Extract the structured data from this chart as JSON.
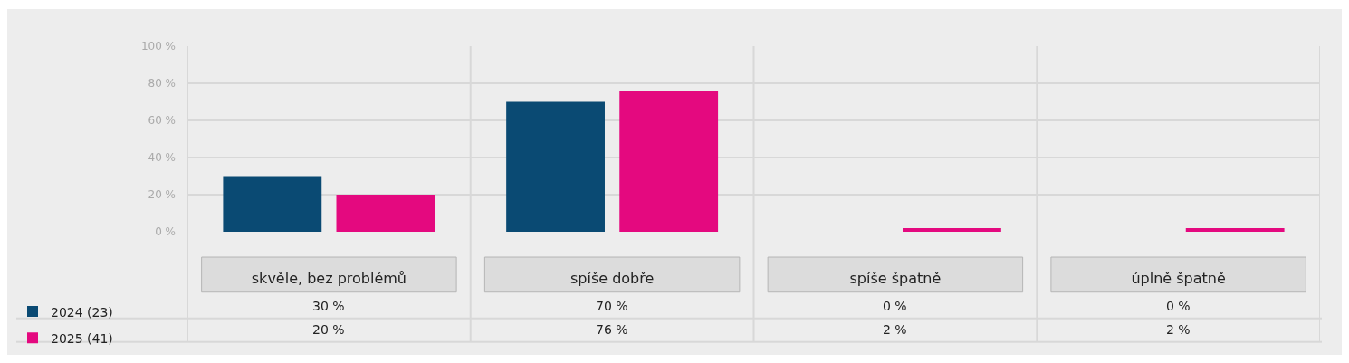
{
  "chart_data": {
    "type": "bar",
    "categories": [
      "skvěle, bez problémů",
      "spíše dobře",
      "spíše špatně",
      "úplně špatně"
    ],
    "series": [
      {
        "name": "2024 (23)",
        "color": "#0a4a73",
        "values": [
          30,
          70,
          0,
          0
        ],
        "value_labels": [
          "30 %",
          "70 %",
          "0 %",
          "0 %"
        ]
      },
      {
        "name": "2025 (41)",
        "color": "#e4097f",
        "values": [
          20,
          76,
          2,
          2
        ],
        "value_labels": [
          "20 %",
          "76 %",
          "2 %",
          "2 %"
        ]
      }
    ],
    "ylim": [
      0,
      100
    ],
    "yticks": [
      {
        "value": 0,
        "label": "0 %"
      },
      {
        "value": 20,
        "label": "20 %"
      },
      {
        "value": 40,
        "label": "40 %"
      },
      {
        "value": 60,
        "label": "60 %"
      },
      {
        "value": 80,
        "label": "80 %"
      },
      {
        "value": 100,
        "label": "100 %"
      }
    ],
    "grid": "y",
    "legend": "bottom left"
  }
}
